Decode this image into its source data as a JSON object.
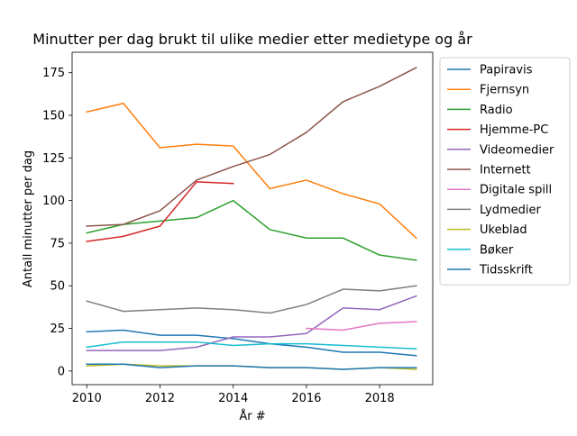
{
  "chart_data": {
    "type": "line",
    "title": "Minutter per dag brukt til ulike medier etter medietype og år",
    "xlabel": "År #",
    "ylabel": "Antall minutter per dag",
    "xlim": [
      2009.6,
      2019.45
    ],
    "ylim": [
      -8,
      187
    ],
    "xticks": [
      2010,
      2012,
      2014,
      2016,
      2018
    ],
    "yticks": [
      0,
      25,
      50,
      75,
      100,
      125,
      150,
      175
    ],
    "grid": false,
    "legend_position": "upper-right-outside",
    "series": [
      {
        "name": "Papiravis",
        "color": "#1f77b4",
        "x": [
          2010,
          2011,
          2012,
          2013,
          2014,
          2015,
          2016,
          2017,
          2018,
          2019
        ],
        "y": [
          23,
          24,
          21,
          21,
          19,
          16,
          14,
          11,
          11,
          9
        ]
      },
      {
        "name": "Fjernsyn",
        "color": "#ff7f0e",
        "x": [
          2010,
          2011,
          2012,
          2013,
          2014,
          2015,
          2016,
          2017,
          2018,
          2019
        ],
        "y": [
          152,
          157,
          131,
          133,
          132,
          107,
          112,
          104,
          98,
          78
        ]
      },
      {
        "name": "Radio",
        "color": "#2ca02c",
        "x": [
          2010,
          2011,
          2012,
          2013,
          2014,
          2015,
          2016,
          2017,
          2018,
          2019
        ],
        "y": [
          81,
          86,
          88,
          90,
          100,
          83,
          78,
          78,
          68,
          65
        ]
      },
      {
        "name": "Hjemme-PC",
        "color": "#d62728",
        "x": [
          2010,
          2011,
          2012,
          2013,
          2014
        ],
        "y": [
          76,
          79,
          85,
          111,
          110
        ]
      },
      {
        "name": "Videomedier",
        "color": "#9467bd",
        "x": [
          2010,
          2011,
          2012,
          2013,
          2014,
          2015,
          2016,
          2017,
          2018,
          2019
        ],
        "y": [
          12,
          12,
          12,
          14,
          20,
          20,
          22,
          37,
          36,
          44
        ]
      },
      {
        "name": "Internett",
        "color": "#8c564b",
        "x": [
          2010,
          2011,
          2012,
          2013,
          2014,
          2015,
          2016,
          2017,
          2018,
          2019
        ],
        "y": [
          85,
          86,
          94,
          112,
          120,
          127,
          140,
          158,
          167,
          178
        ]
      },
      {
        "name": "Digitale spill",
        "color": "#e377c2",
        "x": [
          2016,
          2017,
          2018,
          2019
        ],
        "y": [
          25,
          24,
          28,
          29
        ]
      },
      {
        "name": "Lydmedier",
        "color": "#7f7f7f",
        "x": [
          2010,
          2011,
          2012,
          2013,
          2014,
          2015,
          2016,
          2017,
          2018,
          2019
        ],
        "y": [
          41,
          35,
          36,
          37,
          36,
          34,
          39,
          48,
          47,
          50
        ]
      },
      {
        "name": "Ukeblad",
        "color": "#bcbd22",
        "x": [
          2010,
          2011,
          2012,
          2013,
          2014,
          2015,
          2016,
          2017,
          2018,
          2019
        ],
        "y": [
          3,
          4,
          3,
          3,
          3,
          2,
          2,
          1,
          2,
          1
        ]
      },
      {
        "name": "Bøker",
        "color": "#17becf",
        "x": [
          2010,
          2011,
          2012,
          2013,
          2014,
          2015,
          2016,
          2017,
          2018,
          2019
        ],
        "y": [
          14,
          17,
          17,
          17,
          15,
          16,
          16,
          15,
          14,
          13
        ]
      },
      {
        "name": "Tidsskrift",
        "color": "#1f77b4",
        "x": [
          2010,
          2011,
          2012,
          2013,
          2014,
          2015,
          2016,
          2017,
          2018,
          2019
        ],
        "y": [
          4,
          4,
          2,
          3,
          3,
          2,
          2,
          1,
          2,
          2
        ]
      }
    ]
  }
}
